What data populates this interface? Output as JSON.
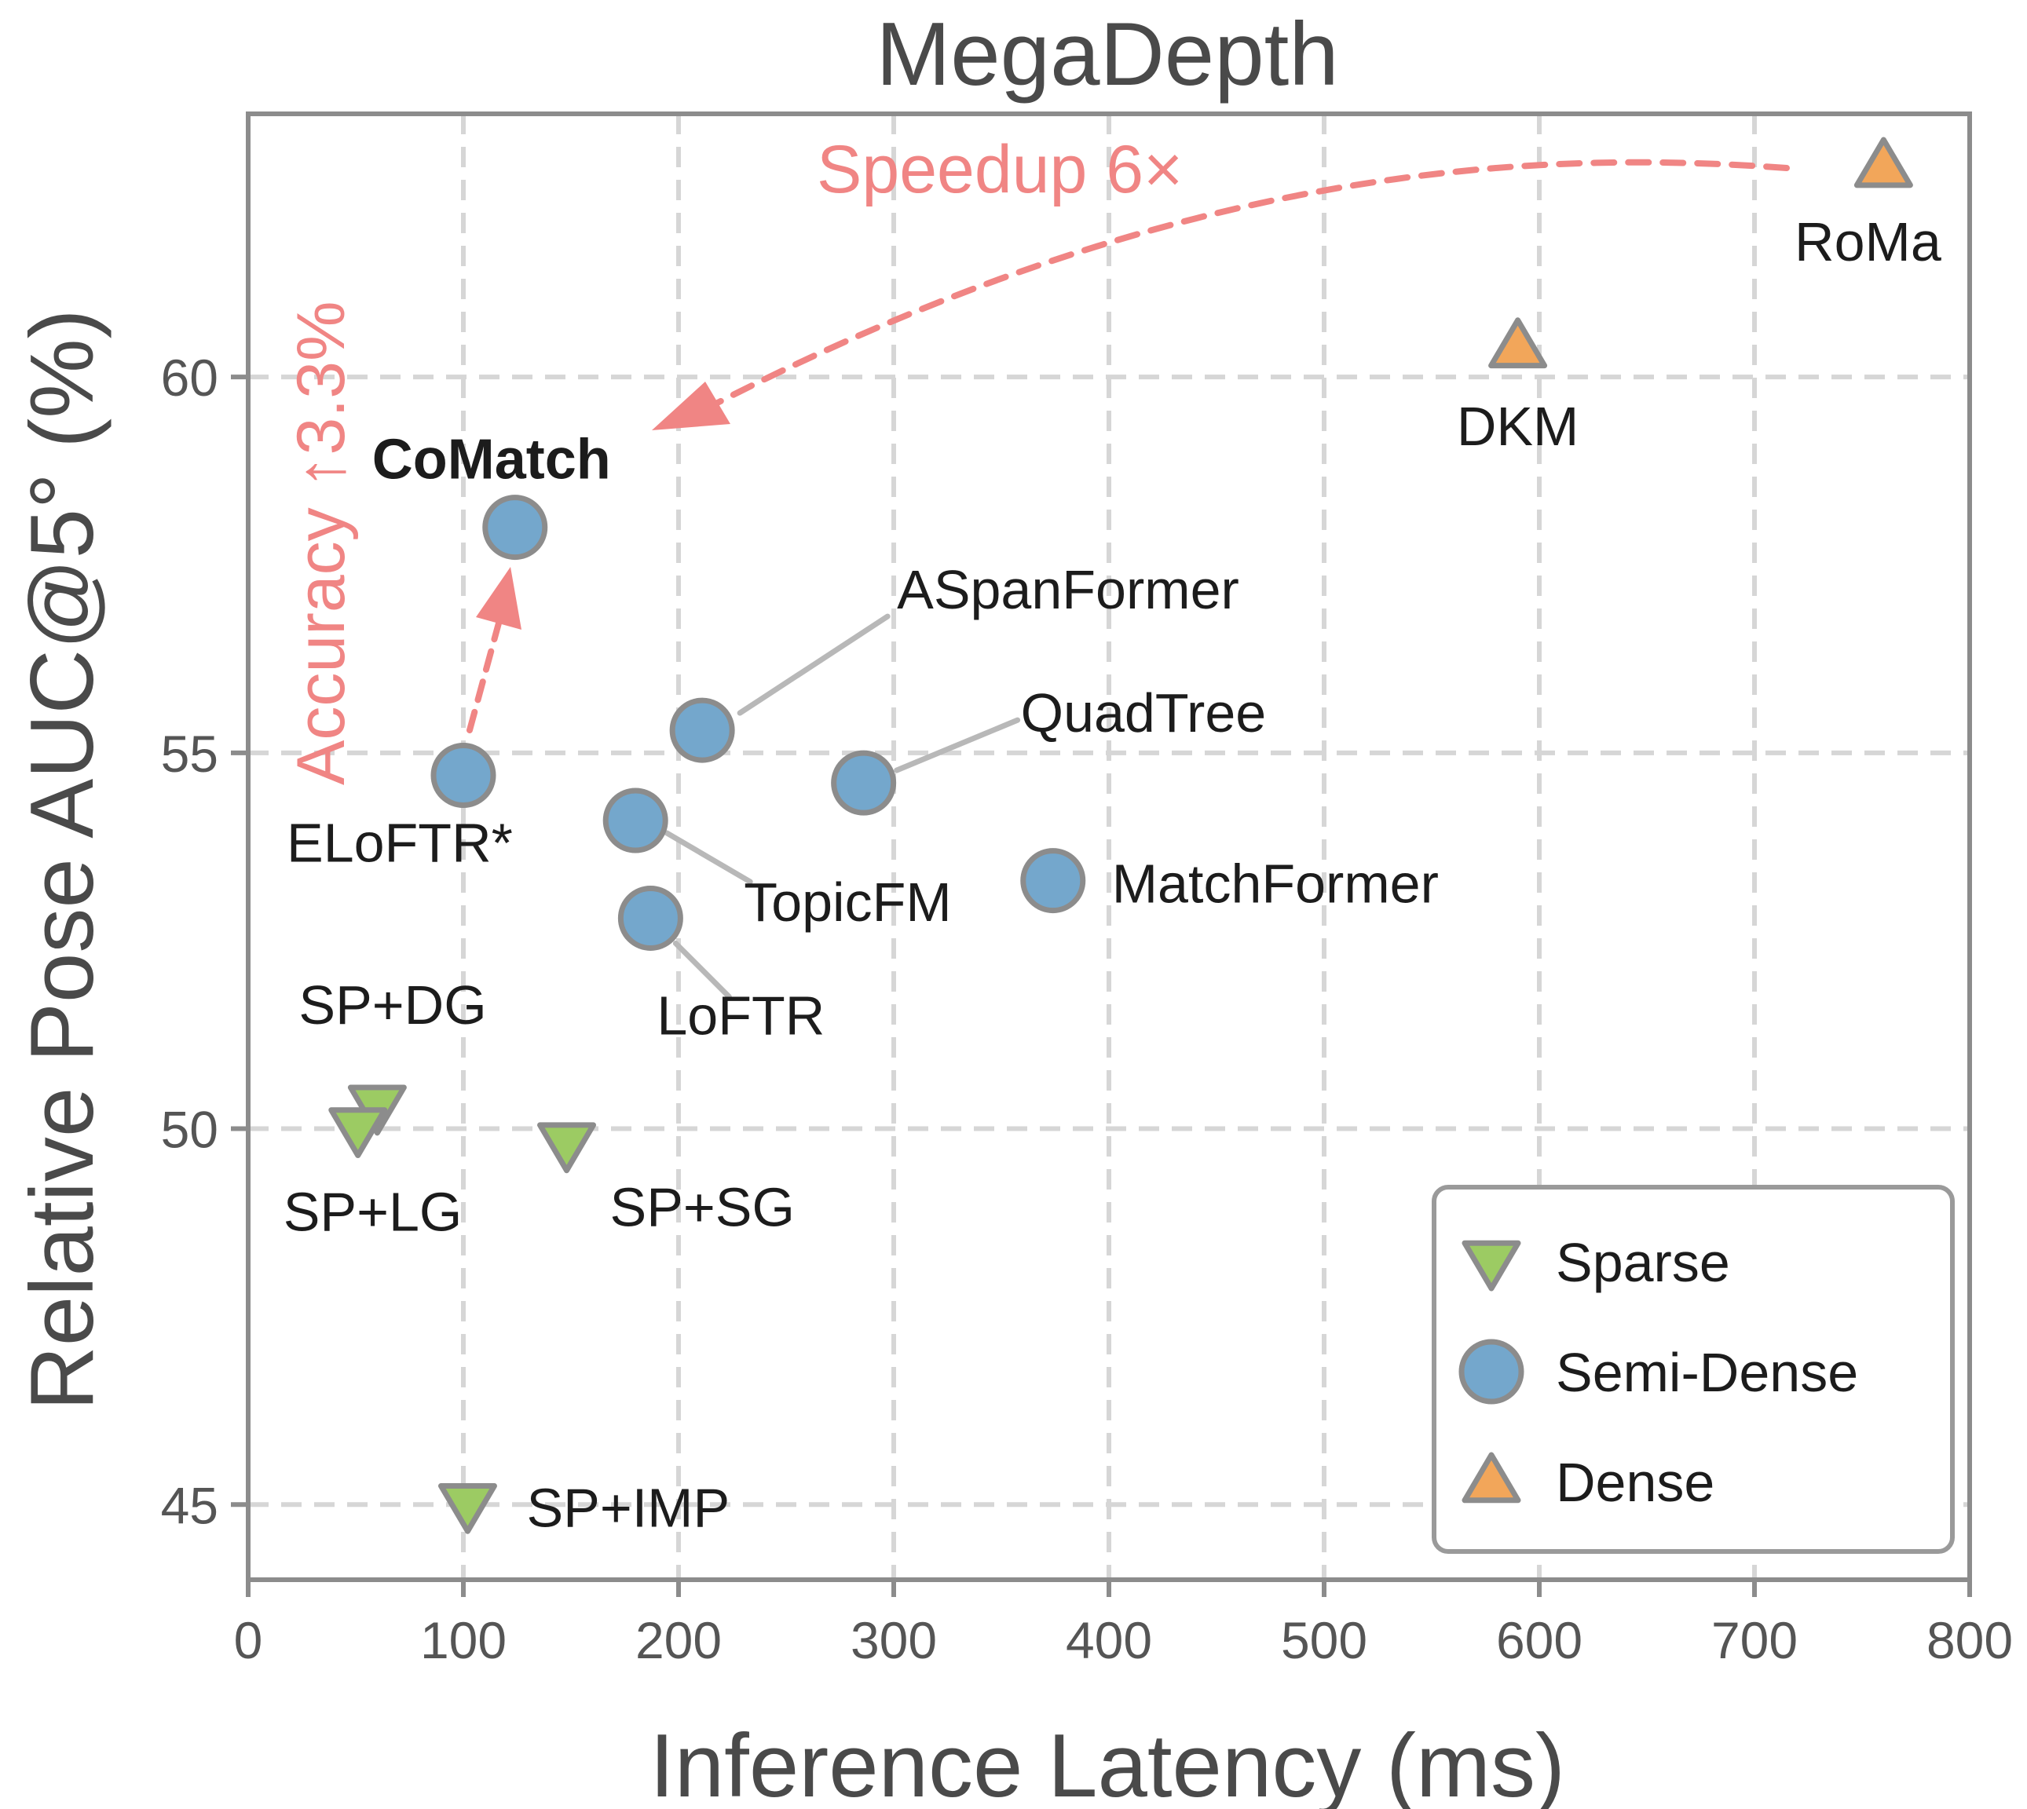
{
  "chart_data": {
    "type": "scatter",
    "title": "MegaDepth",
    "xlabel": "Inference Latency (ms)",
    "ylabel": "Relative Pose AUC@5° (%)",
    "xlim": [
      0,
      800
    ],
    "ylim": [
      44,
      63.5
    ],
    "xticks": [
      0,
      100,
      200,
      300,
      400,
      500,
      600,
      700,
      800
    ],
    "yticks": [
      45,
      50,
      55,
      60
    ],
    "grid": true,
    "legend_position": "bottom-right",
    "colors": {
      "Sparse": "#9ccb63",
      "Semi-Dense": "#74a7cc",
      "Dense": "#f2a65a",
      "edge": "#8c8c8c",
      "annotation": "#f08584",
      "leader": "#b8b8b8"
    },
    "series": [
      {
        "name": "Sparse",
        "marker": "triangle-down",
        "points": [
          {
            "label": "SP+DG",
            "x": 60,
            "y": 50.3
          },
          {
            "label": "SP+LG",
            "x": 51,
            "y": 50.0
          },
          {
            "label": "SP+SG",
            "x": 148,
            "y": 49.8
          },
          {
            "label": "SP+IMP",
            "x": 102,
            "y": 45.0
          }
        ]
      },
      {
        "name": "Semi-Dense",
        "marker": "circle",
        "points": [
          {
            "label": "CoMatch",
            "x": 124,
            "y": 58.0
          },
          {
            "label": "ELoFTR*",
            "x": 100,
            "y": 54.7
          },
          {
            "label": "ASpanFormer",
            "x": 211,
            "y": 55.3
          },
          {
            "label": "QuadTree",
            "x": 286,
            "y": 54.6
          },
          {
            "label": "TopicFM",
            "x": 180,
            "y": 54.1
          },
          {
            "label": "LoFTR",
            "x": 187,
            "y": 52.8
          },
          {
            "label": "MatchFormer",
            "x": 374,
            "y": 53.3
          }
        ]
      },
      {
        "name": "Dense",
        "marker": "triangle-up",
        "points": [
          {
            "label": "DKM",
            "x": 590,
            "y": 60.4
          },
          {
            "label": "RoMa",
            "x": 760,
            "y": 62.8
          }
        ]
      }
    ],
    "annotations": [
      {
        "text": "Speedup 6×"
      },
      {
        "text": "Accuracy ↑3.3%"
      }
    ]
  }
}
